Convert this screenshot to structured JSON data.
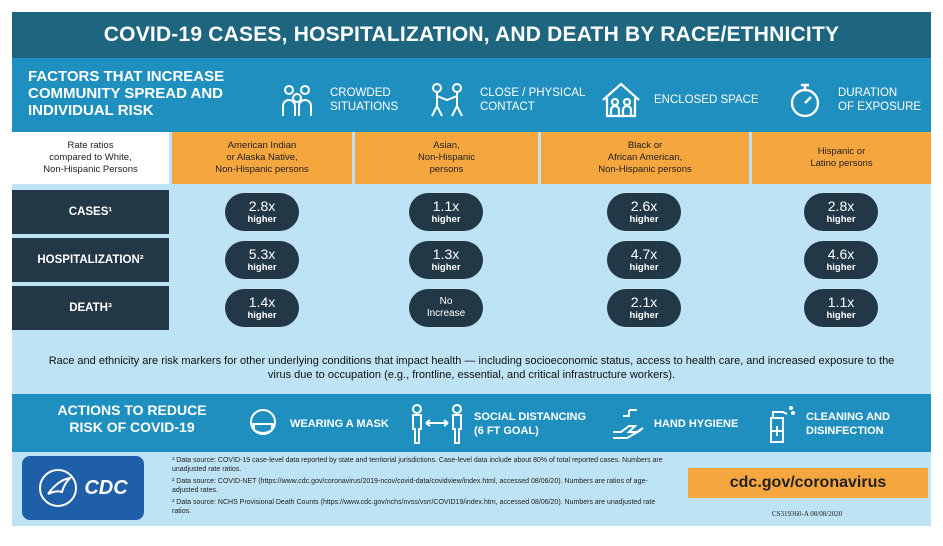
{
  "title": "COVID-19 CASES, HOSPITALIZATION, AND DEATH BY RACE/ETHNICITY",
  "factors": {
    "heading": "FACTORS THAT INCREASE COMMUNITY SPREAD AND INDIVIDUAL RISK",
    "items": [
      {
        "label": "CROWDED\nSITUATIONS",
        "icon": "crowd-icon"
      },
      {
        "label": "CLOSE / PHYSICAL\nCONTACT",
        "icon": "contact-icon"
      },
      {
        "label": "ENCLOSED SPACE",
        "icon": "house-icon"
      },
      {
        "label": "DURATION\nOF EXPOSURE",
        "icon": "stopwatch-icon"
      }
    ]
  },
  "table": {
    "lead": "Rate ratios\ncompared to White,\nNon-Hispanic Persons",
    "groups": [
      "American Indian\nor Alaska Native,\nNon-Hispanic persons",
      "Asian,\nNon-Hispanic\npersons",
      "Black or\nAfrican American,\nNon-Hispanic persons",
      "Hispanic or\nLatino persons"
    ],
    "rows": [
      {
        "label": "CASES¹",
        "values": [
          "2.8x",
          "1.1x",
          "2.6x",
          "2.8x"
        ],
        "suffix": "higher"
      },
      {
        "label": "HOSPITALIZATION²",
        "values": [
          "5.3x",
          "1.3x",
          "4.7x",
          "4.6x"
        ],
        "suffix": "higher"
      },
      {
        "label": "DEATH³",
        "values": [
          "1.4x",
          "No\nIncrease",
          "2.1x",
          "1.1x"
        ],
        "suffix": "higher"
      }
    ]
  },
  "note": "Race and ethnicity are risk markers for other underlying conditions that impact health — including socioeconomic status, access to health care, and increased exposure to the virus due to occupation (e.g., frontline, essential, and critical infrastructure workers).",
  "actions": {
    "heading": "ACTIONS TO REDUCE RISK OF COVID-19",
    "items": [
      {
        "label": "WEARING A MASK",
        "icon": "mask-icon"
      },
      {
        "label": "SOCIAL DISTANCING\n(6 FT GOAL)",
        "icon": "distancing-icon"
      },
      {
        "label": "HAND HYGIENE",
        "icon": "hand-wash-icon"
      },
      {
        "label": "CLEANING AND\nDISINFECTION",
        "icon": "spray-bottle-icon"
      }
    ]
  },
  "footer": {
    "logo_text": "CDC",
    "sources": [
      "¹ Data source: COVID-19 case-level data reported by state and territorial jurisdictions. Case-level data include about 80% of total reported cases. Numbers are unadjusted rate ratios.",
      "² Data source: COVID-NET (https://www.cdc.gov/coronavirus/2019-ncov/covid-data/covidview/index.html, accessed 08/06/20). Numbers are ratios of age-adjusted rates.",
      "³ Data source: NCHS Provisional Death Counts (https://www.cdc.gov/nchs/nvss/vsrr/COVID19/index.htm, accessed 08/06/20). Numbers are unadjusted rate ratios."
    ],
    "url": "cdc.gov/coronavirus",
    "code": "CS319360-A 08/08/2020"
  },
  "colors": {
    "dark": "#233847",
    "orange": "#f6a63f",
    "blue": "#1f8fbf",
    "light": "#bde3f5"
  }
}
